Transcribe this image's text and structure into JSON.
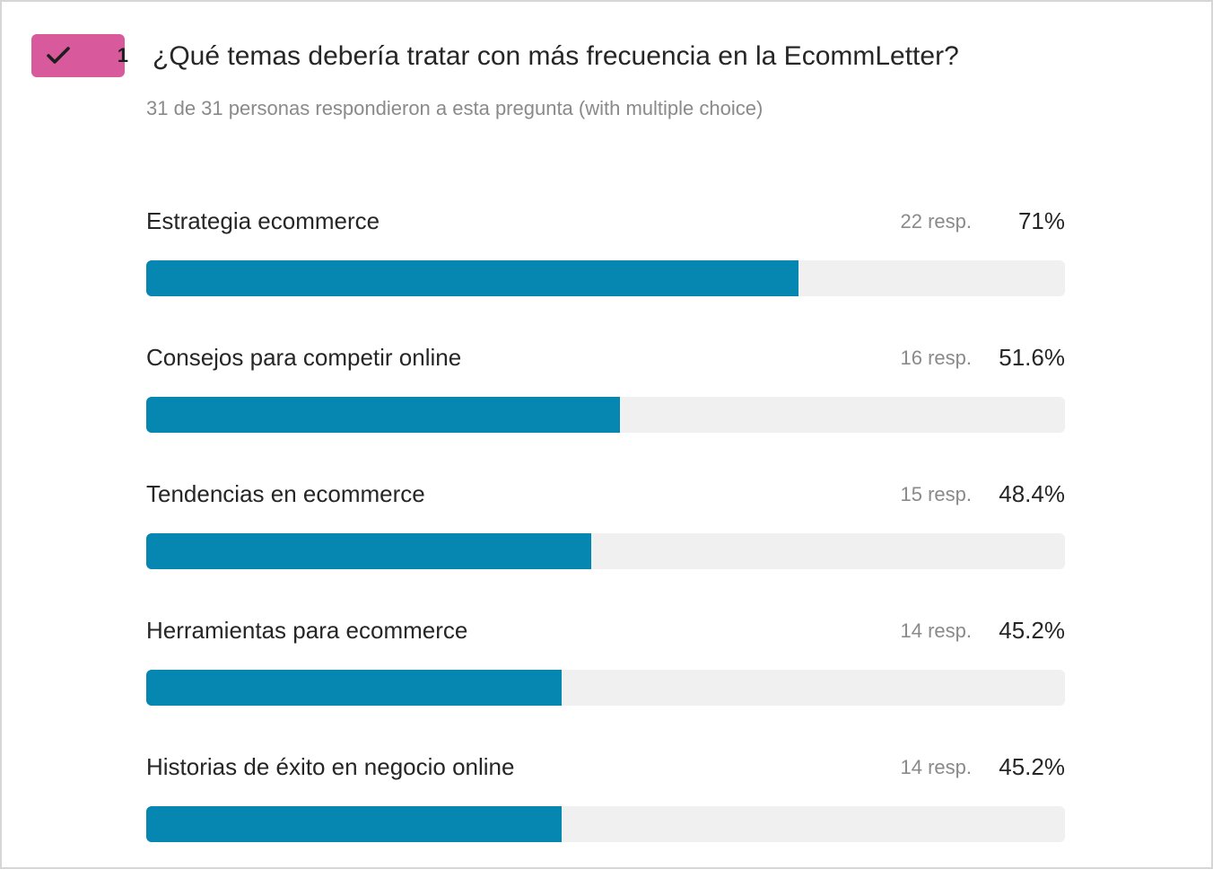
{
  "question": {
    "number": "1",
    "title": "¿Qué temas debería tratar con más frecuencia en la EcommLetter?",
    "subtitle": "31 de 31 personas respondieron a esta pregunta (with multiple choice)",
    "badge_icon": "checkmark-icon",
    "badge_color": "#d85a9c"
  },
  "colors": {
    "bar_fill": "#0587b2",
    "bar_track": "#f0f0f0"
  },
  "answers": [
    {
      "label": "Estrategia ecommerce",
      "count": "22 resp.",
      "percent_text": "71%",
      "percent": 71.0
    },
    {
      "label": "Consejos para competir online",
      "count": "16 resp.",
      "percent_text": "51.6%",
      "percent": 51.6
    },
    {
      "label": "Tendencias en ecommerce",
      "count": "15 resp.",
      "percent_text": "48.4%",
      "percent": 48.4
    },
    {
      "label": "Herramientas para ecommerce",
      "count": "14 resp.",
      "percent_text": "45.2%",
      "percent": 45.2
    },
    {
      "label": "Historias de éxito en negocio online",
      "count": "14 resp.",
      "percent_text": "45.2%",
      "percent": 45.2
    }
  ]
}
